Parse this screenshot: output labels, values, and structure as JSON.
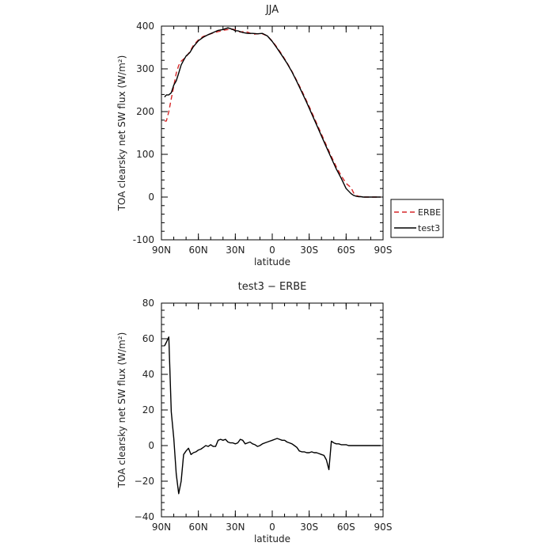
{
  "chart_data": [
    {
      "type": "line",
      "title": "JJA",
      "xlabel": "latitude",
      "ylabel": "TOA clearsky net SW flux (W/m²)",
      "xlim": [
        90,
        -90
      ],
      "ylim": [
        -100,
        400
      ],
      "x_ticks": [
        90,
        60,
        30,
        0,
        -30,
        -60,
        -90
      ],
      "x_tick_labels": [
        "90N",
        "60N",
        "30N",
        "0",
        "30S",
        "60S",
        "90S"
      ],
      "y_ticks": [
        -100,
        0,
        100,
        200,
        300,
        400
      ],
      "y_tick_labels": [
        "-100",
        "0",
        "100",
        "200",
        "300",
        "400"
      ],
      "legend_position": "right-bottom",
      "series": [
        {
          "name": "ERBE",
          "color": "#d62728",
          "dash": "dashed",
          "x": [
            87.5,
            86,
            84,
            82,
            80,
            78,
            76,
            74,
            72,
            70,
            67,
            64,
            60,
            56,
            52,
            48,
            44,
            40,
            36,
            34,
            32,
            30,
            28,
            26,
            24,
            20,
            16,
            12,
            8,
            4,
            0,
            -4,
            -8,
            -12,
            -16,
            -20,
            -24,
            -28,
            -32,
            -36,
            -40,
            -44,
            -48,
            -52,
            -56,
            -60,
            -64,
            -66,
            -68,
            -70,
            -72,
            -74,
            -78,
            -82,
            -86,
            -88
          ],
          "y": [
            178,
            178,
            200,
            230,
            260,
            290,
            308,
            318,
            323,
            328,
            340,
            355,
            368,
            376,
            380,
            384,
            387,
            390,
            392,
            391,
            393,
            391,
            389,
            386,
            387,
            386,
            381,
            382,
            382,
            377,
            365,
            350,
            333,
            314,
            294,
            272,
            249,
            224,
            199,
            173,
            147,
            121,
            95,
            71,
            50,
            32,
            22,
            10,
            4,
            2,
            1,
            0,
            0,
            0,
            0,
            0
          ]
        },
        {
          "name": "test3",
          "color": "#000000",
          "dash": "solid",
          "x": [
            87.5,
            86,
            84,
            82,
            80,
            78,
            76,
            74,
            72,
            70,
            67,
            64,
            60,
            56,
            52,
            48,
            44,
            40,
            36,
            34,
            32,
            30,
            28,
            26,
            24,
            20,
            16,
            12,
            8,
            4,
            0,
            -4,
            -8,
            -12,
            -16,
            -20,
            -24,
            -28,
            -32,
            -36,
            -40,
            -44,
            -48,
            -52,
            -56,
            -60,
            -64,
            -66,
            -68,
            -70,
            -72,
            -74,
            -78,
            -82,
            -86,
            -88
          ],
          "y": [
            234,
            239,
            239,
            244,
            262,
            272,
            290,
            309,
            320,
            330,
            338,
            352,
            366,
            374,
            380,
            385,
            390,
            392,
            396,
            394,
            392,
            389,
            389,
            387,
            385,
            383,
            383,
            382,
            383,
            377,
            364,
            348,
            331,
            313,
            293,
            270,
            246,
            221,
            195,
            169,
            143,
            117,
            91,
            66,
            44,
            20,
            8,
            4,
            2,
            1,
            1,
            0,
            0,
            0,
            0,
            0
          ]
        }
      ]
    },
    {
      "type": "line",
      "title": "test3 − ERBE",
      "xlabel": "latitude",
      "ylabel": "TOA clearsky net SW flux (W/m²)",
      "xlim": [
        90,
        -90
      ],
      "ylim": [
        -40,
        80
      ],
      "x_ticks": [
        90,
        60,
        30,
        0,
        -30,
        -60,
        -90
      ],
      "x_tick_labels": [
        "90N",
        "60N",
        "30N",
        "0",
        "30S",
        "60S",
        "90S"
      ],
      "y_ticks": [
        -40,
        -20,
        0,
        20,
        40,
        60,
        80
      ],
      "y_tick_labels": [
        "−40",
        "−20",
        "0",
        "20",
        "40",
        "60",
        "80"
      ],
      "series": [
        {
          "color": "#000000",
          "dash": "solid",
          "x": [
            87.5,
            86,
            84,
            82,
            80,
            78,
            76,
            74,
            72,
            70,
            68,
            66,
            64,
            62,
            60,
            58,
            56,
            54,
            52,
            50,
            48,
            46,
            44,
            42,
            40,
            38,
            36,
            34,
            32,
            30,
            28,
            26,
            24,
            22,
            20,
            18,
            16,
            14,
            12,
            10,
            8,
            6,
            4,
            2,
            0,
            -2,
            -4,
            -6,
            -8,
            -10,
            -12,
            -14,
            -16,
            -18,
            -20,
            -22,
            -24,
            -26,
            -28,
            -30,
            -32,
            -34,
            -36,
            -38,
            -40,
            -42,
            -44,
            -46,
            -48,
            -50,
            -52,
            -54,
            -56,
            -58,
            -60,
            -62,
            -64,
            -66,
            -68,
            -70,
            -72,
            -74,
            -76,
            -78,
            -80,
            -82,
            -84,
            -86,
            -88
          ],
          "y": [
            56,
            58,
            61,
            19,
            4,
            -16,
            -27,
            -20,
            -5,
            -3,
            -1.5,
            -5,
            -4,
            -3.5,
            -2.5,
            -2,
            -1,
            0,
            -0.5,
            0.5,
            -0.5,
            -0.5,
            3,
            3.5,
            3,
            3.5,
            2,
            1.5,
            1.5,
            1,
            1.5,
            3.5,
            3,
            1,
            1.5,
            2,
            1,
            0.5,
            -0.5,
            0,
            1,
            1.5,
            2,
            2.5,
            3,
            3.5,
            4,
            3.5,
            3,
            3,
            2,
            1.5,
            1,
            0,
            -1,
            -3,
            -3.5,
            -3.5,
            -4,
            -4,
            -3.5,
            -4,
            -4,
            -4.5,
            -5,
            -5.5,
            -8,
            -13.5,
            2.5,
            1.5,
            1,
            1,
            0.5,
            0.5,
            0.5,
            0,
            0,
            0,
            0,
            0,
            0,
            0,
            0,
            0,
            0,
            0,
            0,
            0,
            0
          ]
        }
      ]
    }
  ]
}
